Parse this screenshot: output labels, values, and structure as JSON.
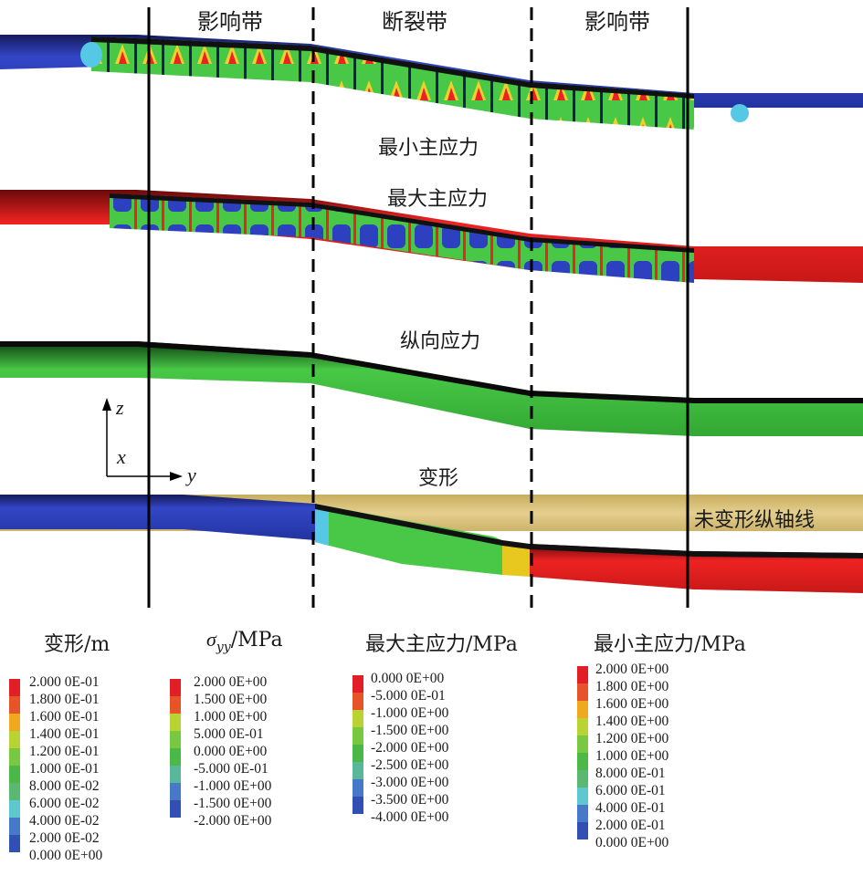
{
  "zones": {
    "left": "影响带",
    "middle": "断裂带",
    "right": "影响带"
  },
  "pipes": [
    {
      "id": "min-principal",
      "title": "最小主应力"
    },
    {
      "id": "max-principal",
      "title": "最大主应力"
    },
    {
      "id": "longitudinal",
      "title": "纵向应力"
    },
    {
      "id": "deformation",
      "title": "变形"
    }
  ],
  "axes": {
    "z": "z",
    "x": "x",
    "y": "y"
  },
  "undeformed_label": "未变形纵轴线",
  "legends": {
    "deformation": {
      "title_cjk": "变形",
      "title_unit": "/m",
      "ticks": [
        "2.000 0E-01",
        "1.800 0E-01",
        "1.600 0E-01",
        "1.400 0E-01",
        "1.200 0E-01",
        "1.000 0E-01",
        "8.000 0E-02",
        "6.000 0E-02",
        "4.000 0E-02",
        "2.000 0E-02",
        "0.000 0E+00"
      ],
      "colors": [
        "#e41e26",
        "#e8542a",
        "#f0a81e",
        "#b9d432",
        "#78c842",
        "#4cb848",
        "#5ab870",
        "#5ec8d0",
        "#4878c8",
        "#3250b4"
      ]
    },
    "sigma": {
      "title_symbol": "σ",
      "title_sub": "yy",
      "title_unit": "/MPa",
      "ticks": [
        "2.000 0E+00",
        "1.500 0E+00",
        "1.000 0E+00",
        "5.000 0E-01",
        "0.000 0E+00",
        "-5.000 0E-01",
        "-1.000 0E+00",
        "-1.500 0E+00",
        "-2.000 0E+00"
      ],
      "colors": [
        "#e41e26",
        "#e8542a",
        "#b9d432",
        "#78c842",
        "#4cb848",
        "#5ab89a",
        "#4878c8",
        "#3250b4"
      ]
    },
    "max_principal": {
      "title_cjk": "最大主应力",
      "title_unit": "/MPa",
      "ticks": [
        "0.000 0E+00",
        "-5.000 0E-01",
        "-1.000 0E+00",
        "-1.500 0E+00",
        "-2.000 0E+00",
        "-2.500 0E+00",
        "-3.000 0E+00",
        "-3.500 0E+00",
        "-4.000 0E+00"
      ],
      "colors": [
        "#e41e26",
        "#e8542a",
        "#b9d432",
        "#78c842",
        "#4cb848",
        "#5ab89a",
        "#4878c8",
        "#3250b4"
      ]
    },
    "min_principal": {
      "title_cjk": "最小主应力",
      "title_unit": "/MPa",
      "ticks": [
        "2.000 0E+00",
        "1.800 0E+00",
        "1.600 0E+00",
        "1.400 0E+00",
        "1.200 0E+00",
        "1.000 0E+00",
        "8.000 0E-01",
        "6.000 0E-01",
        "4.000 0E-01",
        "2.000 0E-01",
        "0.000 0E+00"
      ],
      "colors": [
        "#e41e26",
        "#e8542a",
        "#f0a81e",
        "#b9d432",
        "#78c842",
        "#4cb848",
        "#5ab870",
        "#5ec8d0",
        "#4878c8",
        "#3250b4"
      ]
    }
  },
  "colors": {
    "red": "#e41e26",
    "blue": "#2b3fb0",
    "green": "#3cbf3a",
    "cyan": "#55c8e6",
    "yellow": "#e8c81e",
    "tan": "#d9c27a",
    "black": "#000000"
  }
}
